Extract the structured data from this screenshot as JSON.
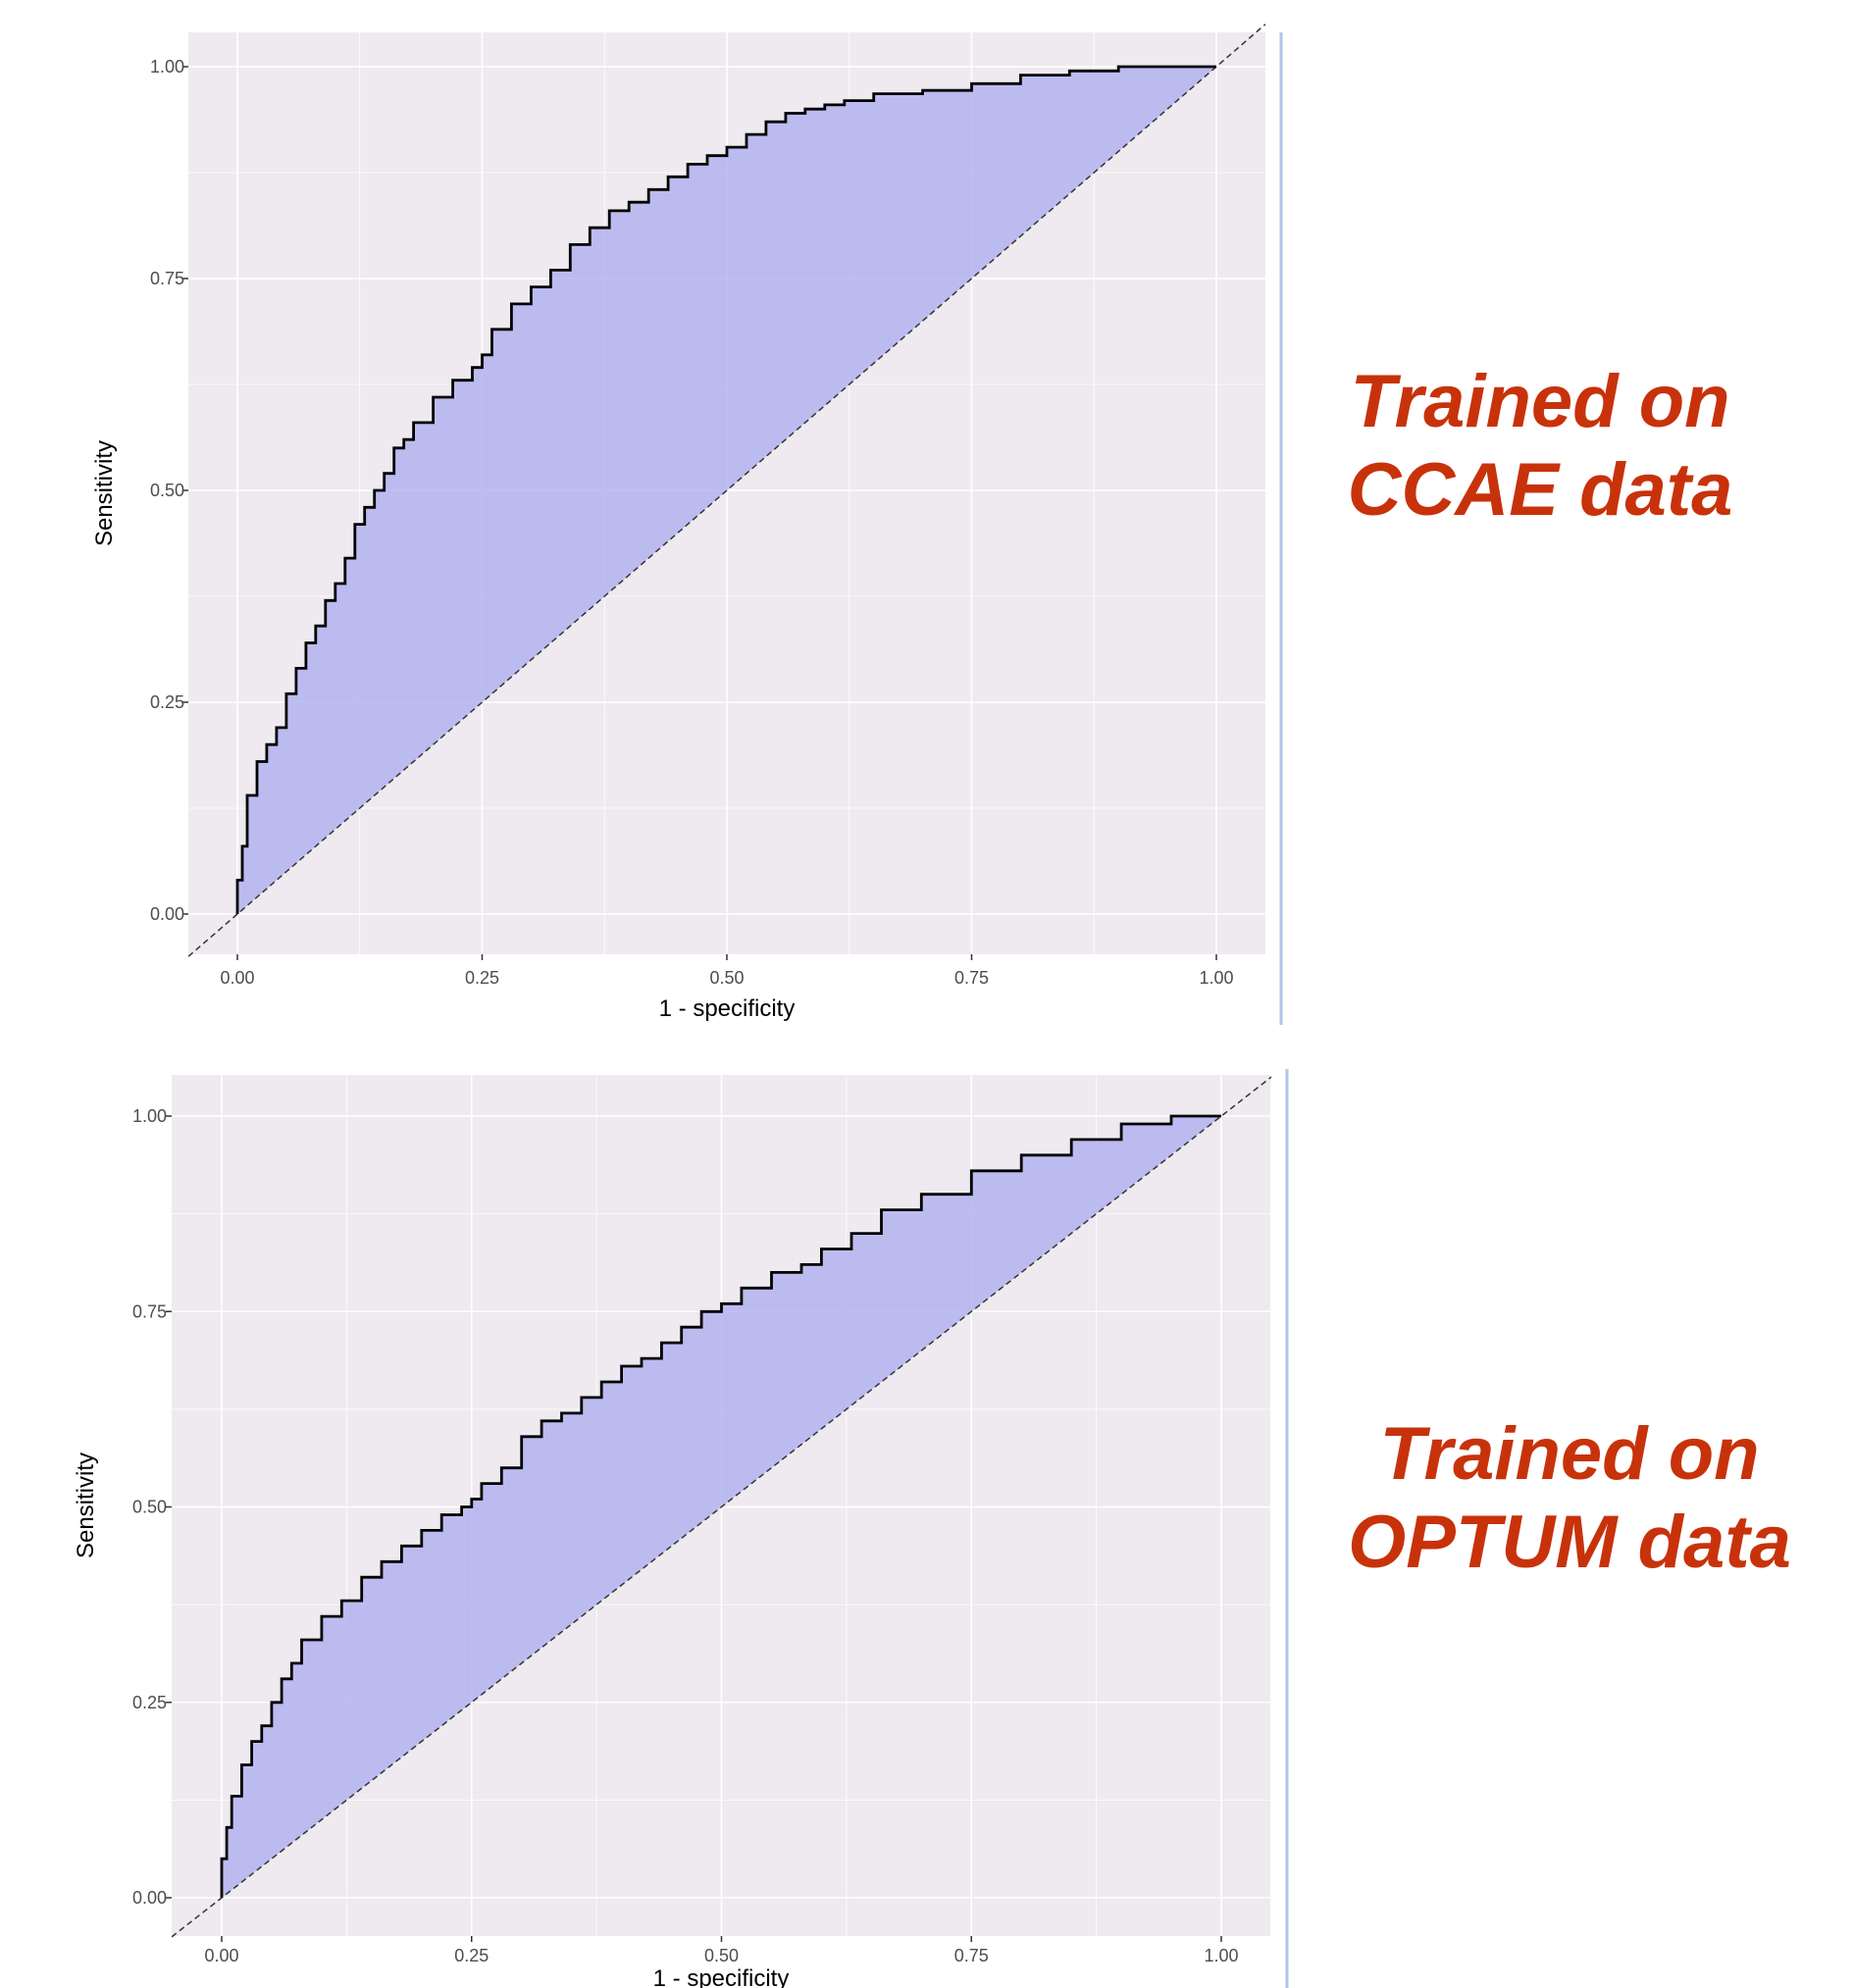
{
  "chart_data": [
    {
      "type": "area",
      "title": "",
      "xlabel": "1 - specificity",
      "ylabel": "Sensitivity",
      "xlim": [
        -0.05,
        1.05
      ],
      "ylim": [
        -0.04,
        1.04
      ],
      "x_ticks": [
        "0.00",
        "0.25",
        "0.50",
        "0.75",
        "1.00"
      ],
      "y_ticks": [
        "0.00",
        "0.25",
        "0.50",
        "0.75",
        "1.00"
      ],
      "grid": true,
      "legend": "none",
      "caption": [
        "Trained on",
        "CCAE data"
      ],
      "series": [
        {
          "x": [
            0.0,
            0.005,
            0.01,
            0.02,
            0.03,
            0.04,
            0.05,
            0.06,
            0.07,
            0.08,
            0.09,
            0.1,
            0.11,
            0.12,
            0.13,
            0.14,
            0.15,
            0.16,
            0.17,
            0.18,
            0.2,
            0.22,
            0.24,
            0.25,
            0.26,
            0.28,
            0.3,
            0.32,
            0.34,
            0.36,
            0.38,
            0.4,
            0.42,
            0.44,
            0.46,
            0.48,
            0.5,
            0.52,
            0.54,
            0.56,
            0.58,
            0.6,
            0.62,
            0.65,
            0.7,
            0.75,
            0.8,
            0.85,
            0.9,
            0.95,
            1.0
          ],
          "y": [
            0.0,
            0.04,
            0.08,
            0.14,
            0.18,
            0.2,
            0.22,
            0.26,
            0.29,
            0.32,
            0.34,
            0.37,
            0.39,
            0.42,
            0.46,
            0.48,
            0.5,
            0.52,
            0.55,
            0.56,
            0.58,
            0.61,
            0.63,
            0.645,
            0.66,
            0.69,
            0.72,
            0.74,
            0.76,
            0.79,
            0.81,
            0.83,
            0.84,
            0.855,
            0.87,
            0.885,
            0.895,
            0.905,
            0.92,
            0.935,
            0.945,
            0.95,
            0.955,
            0.96,
            0.968,
            0.972,
            0.98,
            0.99,
            0.995,
            1.0,
            1.0
          ]
        }
      ]
    },
    {
      "type": "area",
      "title": "",
      "xlabel": "1 - specificity",
      "ylabel": "Sensitivity",
      "xlim": [
        -0.05,
        1.05
      ],
      "ylim": [
        -0.04,
        1.04
      ],
      "x_ticks": [
        "0.00",
        "0.25",
        "0.50",
        "0.75",
        "1.00"
      ],
      "y_ticks": [
        "0.00",
        "0.25",
        "0.50",
        "0.75",
        "1.00"
      ],
      "grid": true,
      "legend": "none",
      "caption": [
        "Trained on",
        "OPTUM data"
      ],
      "series": [
        {
          "x": [
            0.0,
            0.005,
            0.01,
            0.02,
            0.03,
            0.04,
            0.05,
            0.06,
            0.07,
            0.08,
            0.1,
            0.12,
            0.14,
            0.16,
            0.18,
            0.2,
            0.22,
            0.24,
            0.25,
            0.26,
            0.28,
            0.3,
            0.32,
            0.34,
            0.36,
            0.38,
            0.4,
            0.42,
            0.44,
            0.46,
            0.48,
            0.5,
            0.52,
            0.55,
            0.58,
            0.6,
            0.63,
            0.66,
            0.7,
            0.75,
            0.8,
            0.85,
            0.9,
            0.95,
            1.0
          ],
          "y": [
            0.0,
            0.05,
            0.09,
            0.13,
            0.17,
            0.2,
            0.22,
            0.25,
            0.28,
            0.3,
            0.33,
            0.36,
            0.38,
            0.41,
            0.43,
            0.45,
            0.47,
            0.49,
            0.5,
            0.51,
            0.53,
            0.55,
            0.59,
            0.61,
            0.62,
            0.64,
            0.66,
            0.68,
            0.69,
            0.71,
            0.73,
            0.75,
            0.76,
            0.78,
            0.8,
            0.81,
            0.83,
            0.85,
            0.88,
            0.9,
            0.93,
            0.95,
            0.97,
            0.99,
            1.0
          ]
        }
      ]
    }
  ],
  "colors": {
    "panel_background": "#eeeaef",
    "grid": "#ffffff",
    "area_fill": "#b3b3f0",
    "curve": "#000000",
    "diagonal": "#333333",
    "caption": "#c8320a",
    "separator": "#aec6e8"
  }
}
